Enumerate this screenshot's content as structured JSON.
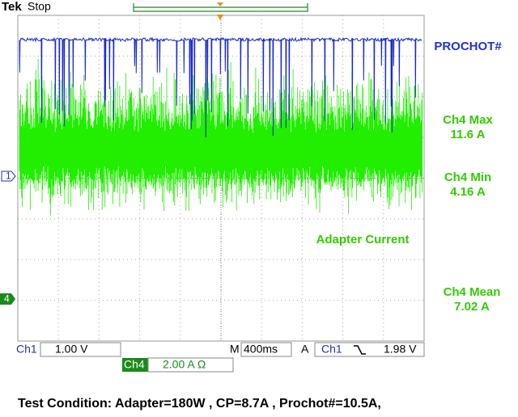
{
  "header": {
    "brand": "Tek",
    "status": "Stop"
  },
  "labels": {
    "prochot": "PROCHOT#",
    "adapter": "Adapter Current"
  },
  "measurements": [
    {
      "name": "Ch4 Max",
      "value": "11.6 A"
    },
    {
      "name": "Ch4 Min",
      "value": "4.16 A"
    },
    {
      "name": "Ch4 Mean",
      "value": "7.02 A"
    }
  ],
  "markers": {
    "ch1": "1",
    "ch4": "4"
  },
  "status_bar": {
    "ch1_label": "Ch1",
    "ch1_scale": "1.00 V",
    "timebase_prefix": "M",
    "timebase": "400ms",
    "acq": "A",
    "trigger_source": "Ch1",
    "trigger_level": "1.98 V",
    "ch4_label": "Ch4",
    "ch4_scale": "2.00 A Ω"
  },
  "caption": "Test Condition: Adapter=180W , CP=8.7A , Prochot#=10.5A,"
}
